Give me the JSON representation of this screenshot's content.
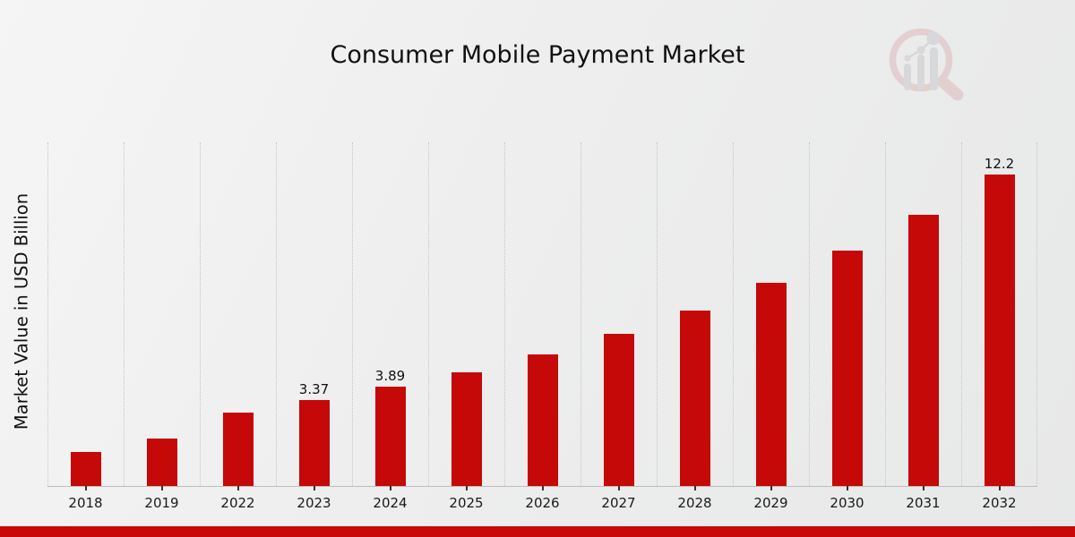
{
  "chart_data": {
    "type": "bar",
    "title": "Consumer Mobile Payment Market",
    "ylabel": "Market Value in USD Billion",
    "xlabel": "",
    "categories": [
      "2018",
      "2019",
      "2022",
      "2023",
      "2024",
      "2025",
      "2026",
      "2027",
      "2028",
      "2029",
      "2030",
      "2031",
      "2032"
    ],
    "values": [
      1.33,
      1.85,
      2.87,
      3.37,
      3.89,
      4.45,
      5.15,
      5.95,
      6.85,
      7.95,
      9.2,
      10.6,
      12.2
    ],
    "bar_labels": [
      null,
      null,
      null,
      "3.37",
      "3.89",
      null,
      null,
      null,
      null,
      null,
      null,
      null,
      "12.2"
    ],
    "ylim": [
      0,
      13.45
    ],
    "grid": "vertical-dotted",
    "legend": "none",
    "bar_color": "#c50808"
  },
  "branding": {
    "logo_icon": "magnifier-growth-chart-logo",
    "logo_ring_color": "#dcb4b4",
    "logo_bars_color": "#c6c6ca"
  },
  "footer": {
    "strip_color": "#c90909"
  }
}
